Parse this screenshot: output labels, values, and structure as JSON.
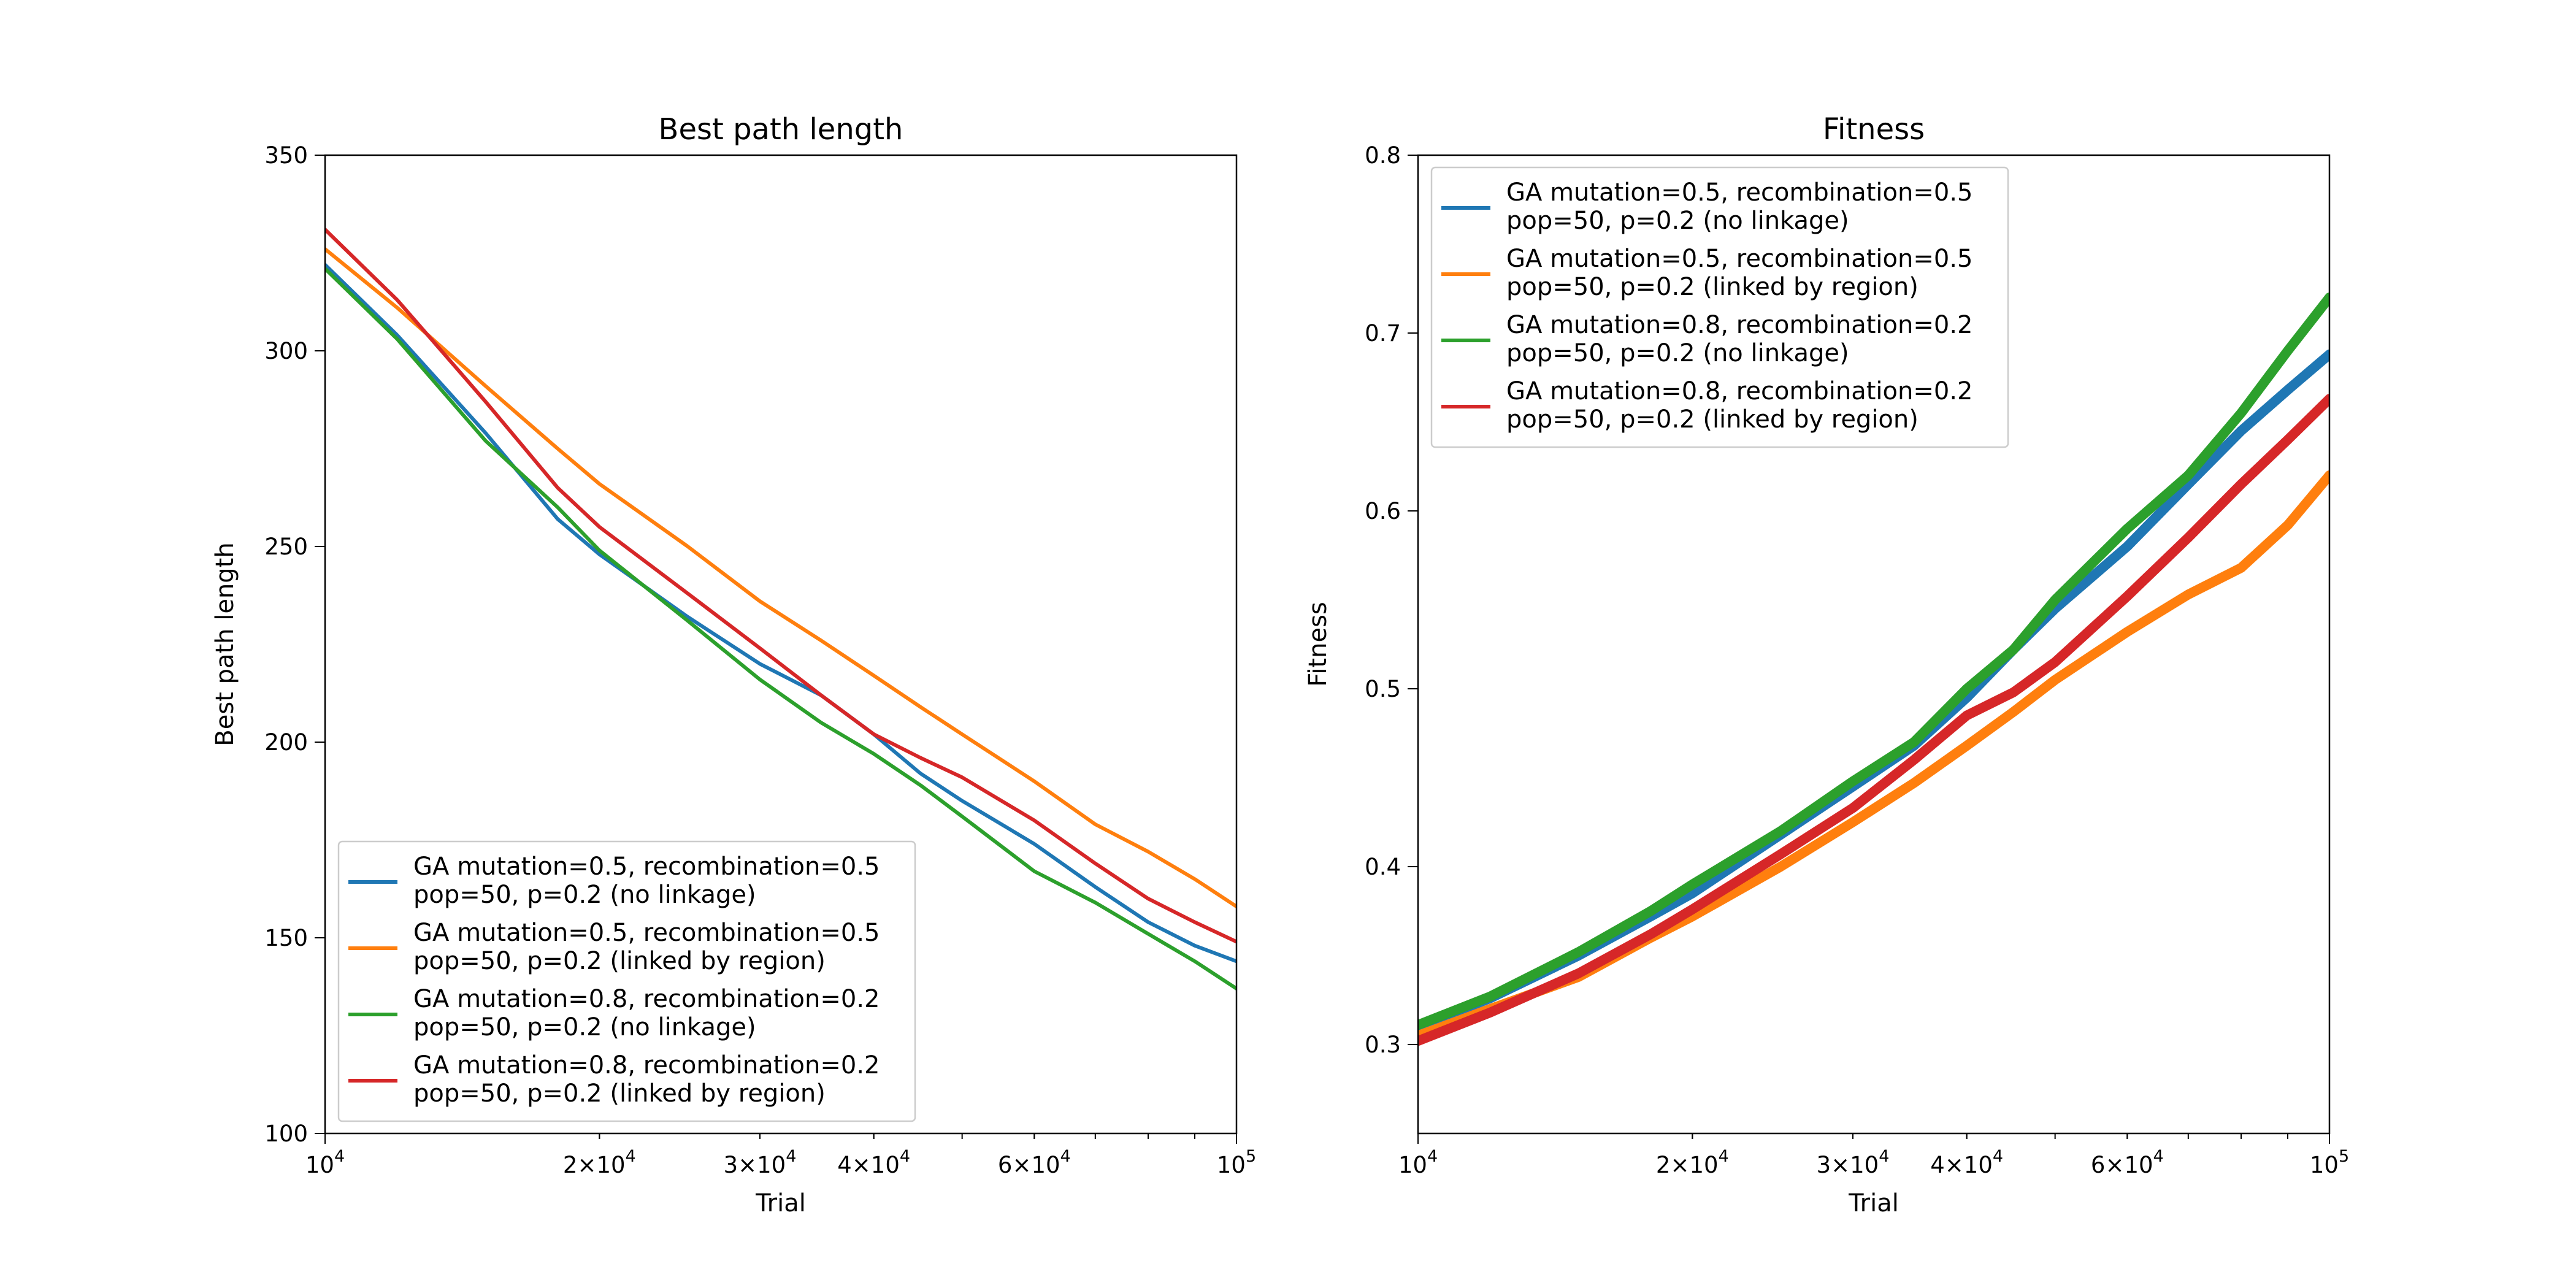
{
  "colors": {
    "blue": "#1f77b4",
    "orange": "#ff7f0e",
    "green": "#2ca02c",
    "red": "#d62728"
  },
  "chart_data": [
    {
      "type": "line",
      "title": "Best path length",
      "xlabel": "Trial",
      "ylabel": "Best path length",
      "xscale": "log",
      "xlim": [
        10000,
        100000
      ],
      "ylim": [
        100,
        350
      ],
      "x_ticks": [
        {
          "value": 10000,
          "label": "10",
          "exp": "4"
        },
        {
          "value": 20000,
          "label": "2×10",
          "exp": "4"
        },
        {
          "value": 30000,
          "label": "3×10",
          "exp": "4"
        },
        {
          "value": 40000,
          "label": "4×10",
          "exp": "4"
        },
        {
          "value": 60000,
          "label": "6×10",
          "exp": "4"
        },
        {
          "value": 100000,
          "label": "10",
          "exp": "5"
        }
      ],
      "y_ticks": [
        {
          "value": 100,
          "label": "100"
        },
        {
          "value": 150,
          "label": "150"
        },
        {
          "value": 200,
          "label": "200"
        },
        {
          "value": 250,
          "label": "250"
        },
        {
          "value": 300,
          "label": "300"
        },
        {
          "value": 350,
          "label": "350"
        }
      ],
      "grid": false,
      "legend_position": "lower-left",
      "line_width": 6,
      "series": [
        {
          "name": "GA mutation=0.5, recombination=0.5\npop=50, p=0.2 (no linkage)",
          "color": "#1f77b4",
          "points": [
            [
              10000,
              322
            ],
            [
              12000,
              304
            ],
            [
              15000,
              279
            ],
            [
              18000,
              257
            ],
            [
              20000,
              248
            ],
            [
              25000,
              232
            ],
            [
              30000,
              220
            ],
            [
              35000,
              212
            ],
            [
              40000,
              202
            ],
            [
              45000,
              192
            ],
            [
              50000,
              185
            ],
            [
              60000,
              174
            ],
            [
              70000,
              163
            ],
            [
              80000,
              154
            ],
            [
              90000,
              148
            ],
            [
              100000,
              144
            ]
          ]
        },
        {
          "name": "GA mutation=0.5, recombination=0.5\npop=50, p=0.2 (linked by region)",
          "color": "#ff7f0e",
          "points": [
            [
              10000,
              326
            ],
            [
              12000,
              311
            ],
            [
              15000,
              291
            ],
            [
              18000,
              275
            ],
            [
              20000,
              266
            ],
            [
              25000,
              250
            ],
            [
              30000,
              236
            ],
            [
              35000,
              226
            ],
            [
              40000,
              217
            ],
            [
              45000,
              209
            ],
            [
              50000,
              202
            ],
            [
              60000,
              190
            ],
            [
              70000,
              179
            ],
            [
              80000,
              172
            ],
            [
              90000,
              165
            ],
            [
              100000,
              158
            ]
          ]
        },
        {
          "name": "GA mutation=0.8, recombination=0.2\npop=50, p=0.2 (no linkage)",
          "color": "#2ca02c",
          "points": [
            [
              10000,
              321
            ],
            [
              12000,
              303
            ],
            [
              15000,
              277
            ],
            [
              18000,
              260
            ],
            [
              20000,
              249
            ],
            [
              25000,
              231
            ],
            [
              30000,
              216
            ],
            [
              35000,
              205
            ],
            [
              40000,
              197
            ],
            [
              45000,
              189
            ],
            [
              50000,
              181
            ],
            [
              60000,
              167
            ],
            [
              70000,
              159
            ],
            [
              80000,
              151
            ],
            [
              90000,
              144
            ],
            [
              100000,
              137
            ]
          ]
        },
        {
          "name": "GA mutation=0.8, recombination=0.2\npop=50, p=0.2 (linked by region)",
          "color": "#d62728",
          "points": [
            [
              10000,
              331
            ],
            [
              12000,
              313
            ],
            [
              15000,
              287
            ],
            [
              18000,
              265
            ],
            [
              20000,
              255
            ],
            [
              25000,
              238
            ],
            [
              30000,
              224
            ],
            [
              35000,
              212
            ],
            [
              40000,
              202
            ],
            [
              45000,
              196
            ],
            [
              50000,
              191
            ],
            [
              60000,
              180
            ],
            [
              70000,
              169
            ],
            [
              80000,
              160
            ],
            [
              90000,
              154
            ],
            [
              100000,
              149
            ]
          ]
        }
      ]
    },
    {
      "type": "line",
      "title": "Fitness",
      "xlabel": "Trial",
      "ylabel": "Fitness",
      "xscale": "log",
      "xlim": [
        10000,
        100000
      ],
      "ylim": [
        0.25,
        0.8
      ],
      "x_ticks": [
        {
          "value": 10000,
          "label": "10",
          "exp": "4"
        },
        {
          "value": 20000,
          "label": "2×10",
          "exp": "4"
        },
        {
          "value": 30000,
          "label": "3×10",
          "exp": "4"
        },
        {
          "value": 40000,
          "label": "4×10",
          "exp": "4"
        },
        {
          "value": 60000,
          "label": "6×10",
          "exp": "4"
        },
        {
          "value": 100000,
          "label": "10",
          "exp": "5"
        }
      ],
      "y_ticks": [
        {
          "value": 0.3,
          "label": "0.3"
        },
        {
          "value": 0.4,
          "label": "0.4"
        },
        {
          "value": 0.5,
          "label": "0.5"
        },
        {
          "value": 0.6,
          "label": "0.6"
        },
        {
          "value": 0.7,
          "label": "0.7"
        },
        {
          "value": 0.8,
          "label": "0.8"
        }
      ],
      "grid": false,
      "legend_position": "upper-left",
      "line_width": 16,
      "series": [
        {
          "name": "GA mutation=0.5, recombination=0.5\npop=50, p=0.2 (no linkage)",
          "color": "#1f77b4",
          "points": [
            [
              10000,
              0.31
            ],
            [
              12000,
              0.326
            ],
            [
              15000,
              0.35
            ],
            [
              18000,
              0.372
            ],
            [
              20000,
              0.385
            ],
            [
              25000,
              0.418
            ],
            [
              30000,
              0.445
            ],
            [
              35000,
              0.468
            ],
            [
              40000,
              0.495
            ],
            [
              45000,
              0.522
            ],
            [
              50000,
              0.545
            ],
            [
              60000,
              0.58
            ],
            [
              70000,
              0.615
            ],
            [
              80000,
              0.645
            ],
            [
              90000,
              0.668
            ],
            [
              100000,
              0.688
            ]
          ]
        },
        {
          "name": "GA mutation=0.5, recombination=0.5\npop=50, p=0.2 (linked by region)",
          "color": "#ff7f0e",
          "points": [
            [
              10000,
              0.305
            ],
            [
              12000,
              0.32
            ],
            [
              15000,
              0.338
            ],
            [
              18000,
              0.36
            ],
            [
              20000,
              0.372
            ],
            [
              25000,
              0.4
            ],
            [
              30000,
              0.425
            ],
            [
              35000,
              0.447
            ],
            [
              40000,
              0.468
            ],
            [
              45000,
              0.487
            ],
            [
              50000,
              0.505
            ],
            [
              60000,
              0.532
            ],
            [
              70000,
              0.553
            ],
            [
              80000,
              0.568
            ],
            [
              90000,
              0.592
            ],
            [
              100000,
              0.62
            ]
          ]
        },
        {
          "name": "GA mutation=0.8, recombination=0.2\npop=50, p=0.2 (no linkage)",
          "color": "#2ca02c",
          "points": [
            [
              10000,
              0.311
            ],
            [
              12000,
              0.327
            ],
            [
              15000,
              0.352
            ],
            [
              18000,
              0.375
            ],
            [
              20000,
              0.39
            ],
            [
              25000,
              0.42
            ],
            [
              30000,
              0.448
            ],
            [
              35000,
              0.47
            ],
            [
              40000,
              0.5
            ],
            [
              45000,
              0.522
            ],
            [
              50000,
              0.55
            ],
            [
              60000,
              0.59
            ],
            [
              70000,
              0.62
            ],
            [
              80000,
              0.655
            ],
            [
              90000,
              0.69
            ],
            [
              100000,
              0.72
            ]
          ]
        },
        {
          "name": "GA mutation=0.8, recombination=0.2\npop=50, p=0.2 (linked by region)",
          "color": "#d62728",
          "points": [
            [
              10000,
              0.302
            ],
            [
              12000,
              0.318
            ],
            [
              15000,
              0.34
            ],
            [
              18000,
              0.362
            ],
            [
              20000,
              0.376
            ],
            [
              25000,
              0.407
            ],
            [
              30000,
              0.433
            ],
            [
              35000,
              0.46
            ],
            [
              40000,
              0.485
            ],
            [
              45000,
              0.498
            ],
            [
              50000,
              0.515
            ],
            [
              60000,
              0.552
            ],
            [
              70000,
              0.585
            ],
            [
              80000,
              0.615
            ],
            [
              90000,
              0.64
            ],
            [
              100000,
              0.663
            ]
          ]
        }
      ]
    }
  ]
}
